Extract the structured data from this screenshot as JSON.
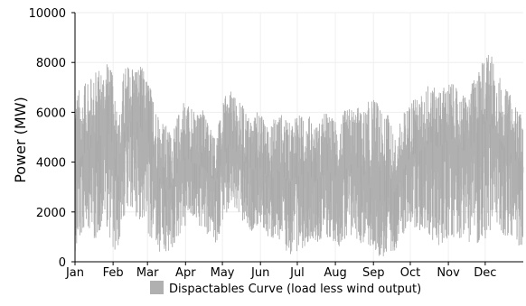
{
  "chart_data": {
    "type": "area",
    "title": "",
    "xlabel": "",
    "ylabel": "Power (MW)",
    "ylim": [
      0,
      10000
    ],
    "yticks": [
      0,
      2000,
      4000,
      6000,
      8000,
      10000
    ],
    "xlim": [
      0,
      365
    ],
    "xticks": [
      {
        "label": "Jan",
        "day": 0
      },
      {
        "label": "Feb",
        "day": 31
      },
      {
        "label": "Mar",
        "day": 59
      },
      {
        "label": "Apr",
        "day": 90
      },
      {
        "label": "May",
        "day": 120
      },
      {
        "label": "Jun",
        "day": 151
      },
      {
        "label": "Jul",
        "day": 181
      },
      {
        "label": "Aug",
        "day": 212
      },
      {
        "label": "Sep",
        "day": 243
      },
      {
        "label": "Oct",
        "day": 273
      },
      {
        "label": "Nov",
        "day": 304
      },
      {
        "label": "Dec",
        "day": 334
      }
    ],
    "grid": true,
    "legend": {
      "placement": "bottom-center"
    },
    "series": [
      {
        "name": "Dispactables Curve (load less wind output)",
        "color": "#b0b0b0",
        "x_day": [
          0,
          5,
          10,
          15,
          20,
          25,
          30,
          35,
          40,
          45,
          50,
          55,
          60,
          65,
          70,
          75,
          80,
          85,
          90,
          95,
          100,
          105,
          110,
          115,
          120,
          125,
          130,
          135,
          140,
          145,
          150,
          155,
          160,
          165,
          170,
          175,
          180,
          185,
          190,
          195,
          200,
          205,
          210,
          215,
          220,
          225,
          230,
          235,
          240,
          245,
          250,
          255,
          260,
          265,
          270,
          275,
          280,
          285,
          290,
          295,
          300,
          305,
          310,
          315,
          320,
          325,
          330,
          335,
          340,
          345,
          350,
          355,
          360,
          365
        ],
        "y_max": [
          7200,
          6900,
          7300,
          7500,
          7800,
          8100,
          7700,
          5600,
          7900,
          8000,
          8000,
          7800,
          7300,
          6500,
          5800,
          5500,
          5200,
          6200,
          6500,
          6200,
          6000,
          6100,
          5500,
          5000,
          6300,
          7000,
          6600,
          6400,
          6000,
          5800,
          6200,
          5600,
          5500,
          6300,
          5800,
          5600,
          6000,
          5900,
          6000,
          5400,
          5800,
          6100,
          5800,
          5700,
          6100,
          6300,
          6300,
          6000,
          6600,
          6700,
          5900,
          6000,
          5000,
          5700,
          6300,
          6500,
          6600,
          7000,
          7100,
          6900,
          7000,
          7300,
          7000,
          6800,
          6700,
          7400,
          7900,
          8500,
          8200,
          7600,
          7000,
          6700,
          6200,
          5700
        ],
        "y_min": [
          400,
          900,
          1500,
          800,
          1200,
          1600,
          500,
          400,
          1800,
          2200,
          1800,
          1500,
          900,
          600,
          300,
          200,
          500,
          1000,
          1200,
          1800,
          1500,
          1100,
          900,
          700,
          1500,
          2000,
          1800,
          1600,
          1300,
          1200,
          1400,
          1100,
          800,
          900,
          600,
          200,
          300,
          500,
          800,
          900,
          700,
          900,
          800,
          600,
          900,
          1000,
          800,
          600,
          500,
          300,
          100,
          200,
          400,
          800,
          1200,
          1400,
          1300,
          1100,
          800,
          600,
          700,
          900,
          1000,
          900,
          800,
          600,
          700,
          900,
          1100,
          1300,
          1000,
          800,
          600,
          500
        ],
        "y_typical": [
          3800,
          4200,
          4500,
          4600,
          5000,
          5400,
          4800,
          3000,
          5200,
          5600,
          5700,
          5200,
          4800,
          4000,
          3200,
          2800,
          3100,
          3800,
          4200,
          4000,
          3900,
          3800,
          3400,
          3200,
          4200,
          4700,
          4500,
          4200,
          3900,
          3700,
          3800,
          3500,
          3300,
          3700,
          3400,
          3200,
          3400,
          3500,
          3600,
          3200,
          3400,
          3700,
          3500,
          3300,
          3700,
          3900,
          3800,
          3500,
          3000,
          2700,
          2300,
          2600,
          2800,
          3400,
          4000,
          4300,
          4400,
          4600,
          4800,
          4600,
          4700,
          5000,
          4800,
          4500,
          4400,
          4800,
          5300,
          5700,
          5400,
          5000,
          4600,
          4300,
          4000,
          3800
        ]
      }
    ]
  }
}
